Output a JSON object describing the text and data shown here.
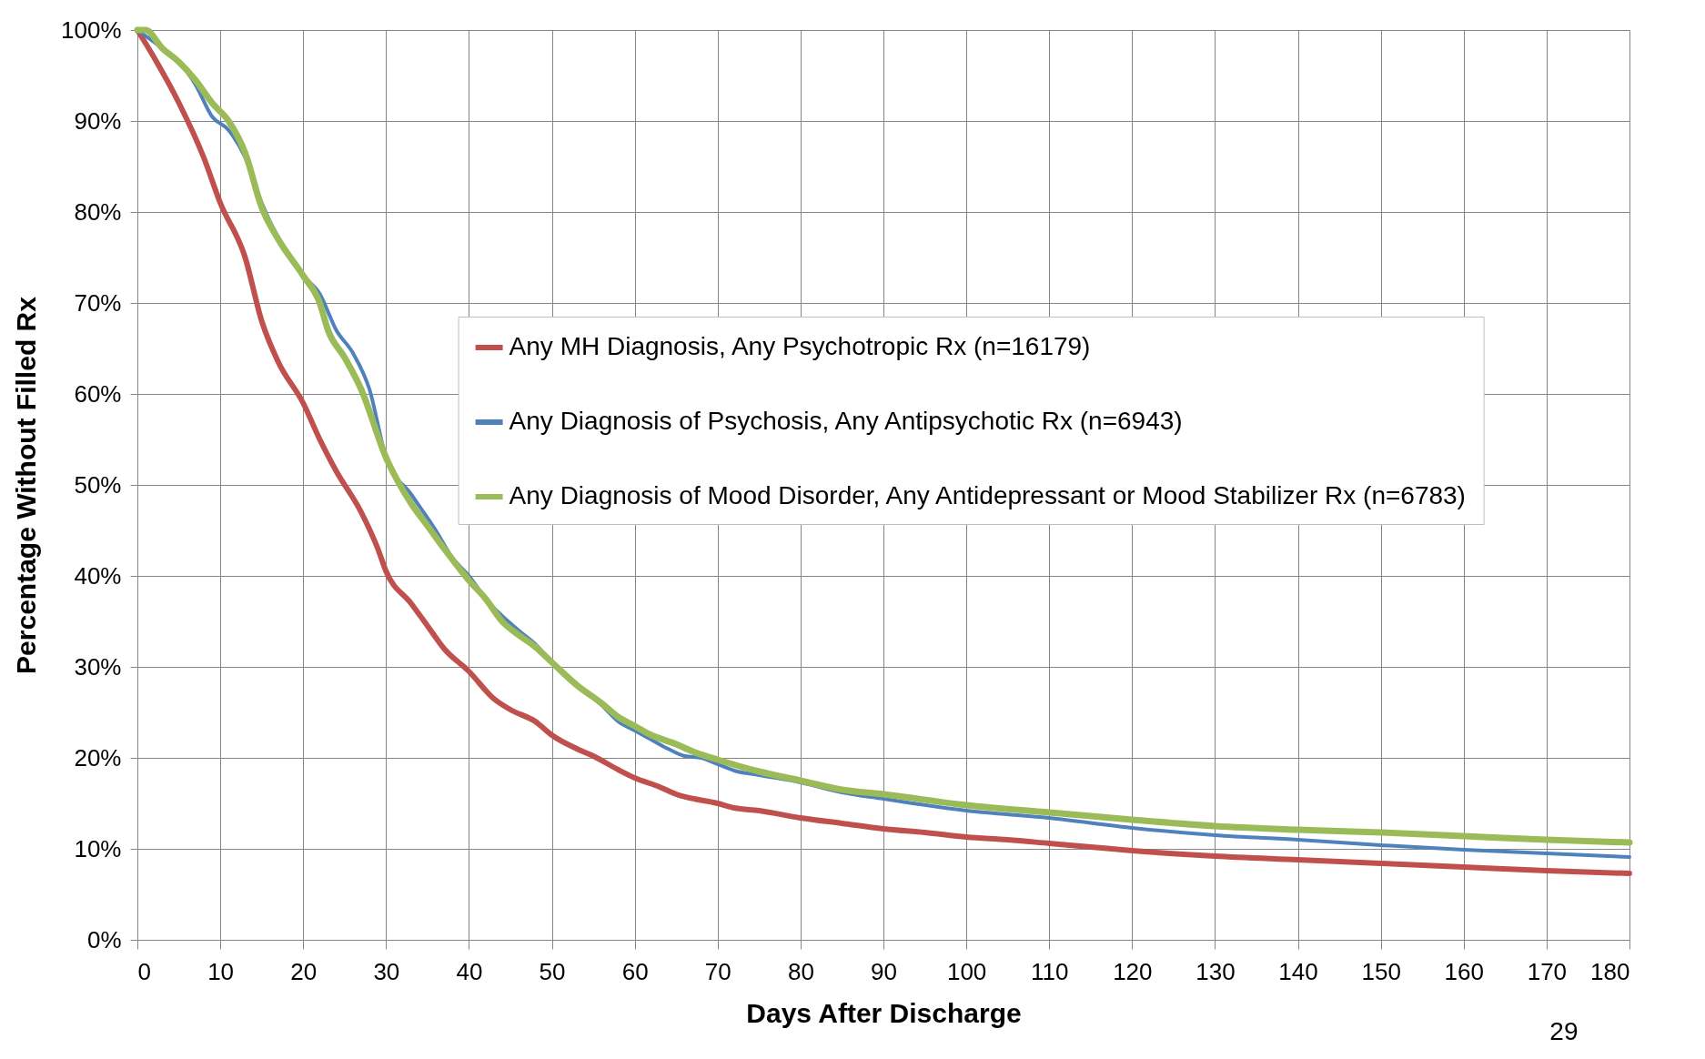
{
  "chart_data": {
    "type": "line",
    "xlabel": "Days After Discharge",
    "ylabel": "Percentage Without Filled Rx",
    "xlim": [
      0,
      180
    ],
    "xticks": [
      0,
      10,
      20,
      30,
      40,
      50,
      60,
      70,
      80,
      90,
      100,
      110,
      120,
      130,
      140,
      150,
      160,
      170,
      180
    ],
    "ylim": [
      0,
      100
    ],
    "yticks": [
      {
        "value": 0,
        "label": "0%"
      },
      {
        "value": 10,
        "label": "10%"
      },
      {
        "value": 20,
        "label": "20%"
      },
      {
        "value": 30,
        "label": "30%"
      },
      {
        "value": 40,
        "label": "40%"
      },
      {
        "value": 50,
        "label": "50%"
      },
      {
        "value": 60,
        "label": "60%"
      },
      {
        "value": 70,
        "label": "70%"
      },
      {
        "value": 80,
        "label": "80%"
      },
      {
        "value": 90,
        "label": "90%"
      },
      {
        "value": 100,
        "label": "100%"
      }
    ],
    "grid": true,
    "legend": "right",
    "annotations": [
      "29"
    ],
    "series": [
      {
        "name": "Any MH Diagnosis, Any Psychotropic Rx (n=16179)",
        "color": "#c0504d",
        "x": [
          0,
          2,
          5,
          8,
          10,
          13,
          15,
          17,
          20,
          22,
          24,
          27,
          29,
          30,
          33,
          35,
          37,
          40,
          43,
          45,
          48,
          50,
          53,
          55,
          58,
          60,
          63,
          65,
          70,
          72,
          75,
          80,
          85,
          90,
          95,
          100,
          105,
          110,
          115,
          120,
          130,
          140,
          150,
          160,
          170,
          180
        ],
        "values": [
          100,
          97,
          92,
          86,
          81,
          75,
          68,
          63.5,
          59,
          55,
          51.5,
          47,
          43,
          40.5,
          37,
          34.5,
          32,
          29.5,
          26.5,
          25.3,
          24,
          22.5,
          21,
          20.2,
          18.7,
          17.8,
          16.8,
          16,
          15,
          14.5,
          14.2,
          13.4,
          12.8,
          12.2,
          11.8,
          11.3,
          11,
          10.6,
          10.2,
          9.8,
          9.2,
          8.8,
          8.4,
          8,
          7.6,
          7.3
        ]
      },
      {
        "name": "Any Diagnosis of Psychosis, Any Antipsychotic Rx  (n=6943)",
        "color": "#4f81bd",
        "x": [
          0,
          3,
          5,
          7,
          9,
          11,
          13,
          15,
          20,
          22,
          24,
          26,
          28,
          30,
          33,
          36,
          38,
          40,
          42,
          46,
          48,
          50,
          53,
          56,
          58,
          60,
          62,
          64,
          66,
          68,
          70,
          72,
          75,
          80,
          85,
          90,
          100,
          110,
          120,
          130,
          140,
          150,
          160,
          170,
          180
        ],
        "values": [
          100,
          98,
          96.5,
          94,
          90.5,
          89,
          86,
          81,
          73,
          71,
          67,
          64.5,
          60.5,
          53,
          49,
          45,
          42,
          40,
          37.5,
          34,
          32.5,
          30.5,
          28,
          25.8,
          24,
          23,
          22,
          21,
          20.2,
          20,
          19.3,
          18.6,
          18.1,
          17.3,
          16.2,
          15.5,
          14.2,
          13.4,
          12.3,
          11.5,
          11,
          10.4,
          9.9,
          9.5,
          9.1
        ]
      },
      {
        "name": "Any Diagnosis of Mood Disorder, Any Antidepressant or Mood Stabilizer Rx (n=6783)",
        "color": "#9bbb59",
        "x": [
          0,
          1,
          3,
          5,
          7,
          9,
          11,
          13,
          15,
          17,
          20,
          22,
          23,
          25,
          27,
          30,
          33,
          35,
          37,
          40,
          42,
          44,
          46,
          48,
          50,
          53,
          56,
          58,
          60,
          62,
          65,
          67,
          70,
          75,
          80,
          85,
          90,
          100,
          110,
          120,
          130,
          140,
          150,
          160,
          170,
          180
        ],
        "values": [
          100,
          100,
          98,
          96.5,
          94.5,
          92,
          90,
          86.5,
          80.5,
          77,
          73,
          70,
          67,
          64,
          60.5,
          53,
          48,
          45.5,
          43,
          39.5,
          37.5,
          35,
          33.5,
          32.2,
          30.5,
          28,
          26,
          24.5,
          23.5,
          22.5,
          21.5,
          20.7,
          19.8,
          18.5,
          17.5,
          16.5,
          16,
          14.8,
          14,
          13.2,
          12.5,
          12.1,
          11.8,
          11.4,
          11,
          10.7
        ]
      }
    ]
  }
}
